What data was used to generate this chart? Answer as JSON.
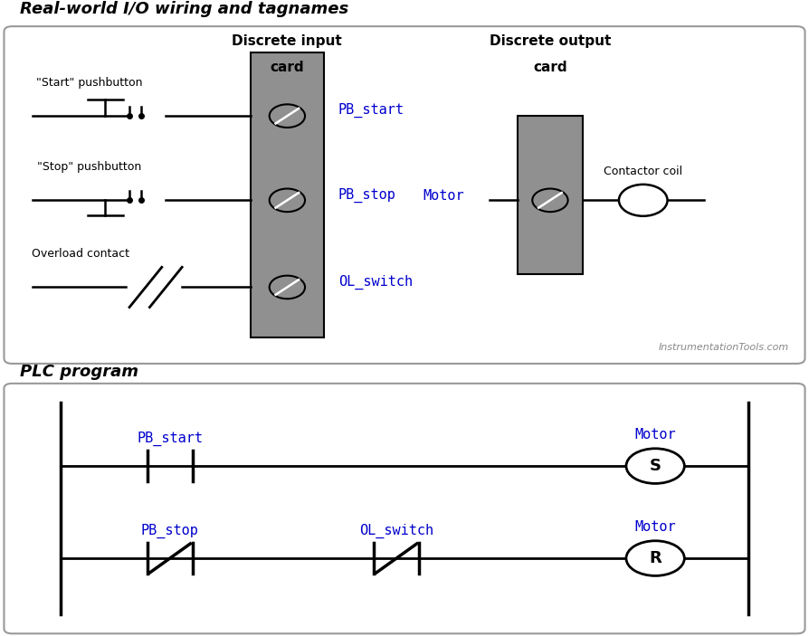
{
  "title_top": "Real-world I/O wiring and tagnames",
  "title_bottom": "PLC program",
  "blue_color": "#0000CD",
  "black_color": "#000000",
  "gray_color": "#909090",
  "bg_color": "#FFFFFF",
  "box_border_color": "#999999",
  "input_card_label_line1": "Discrete input",
  "input_card_label_line2": "card",
  "output_card_label_line1": "Discrete output",
  "output_card_label_line2": "card",
  "pb_start_label": "PB_start",
  "pb_stop_label": "PB_stop",
  "ol_switch_label": "OL_switch",
  "motor_label": "Motor",
  "start_pushbutton_label": "\"Start\" pushbutton",
  "stop_pushbutton_label": "\"Stop\" pushbutton",
  "overload_label": "Overload contact",
  "contactor_label": "Contactor coil",
  "watermark": "InstrumentationTools.com",
  "s_label": "S",
  "r_label": "R"
}
